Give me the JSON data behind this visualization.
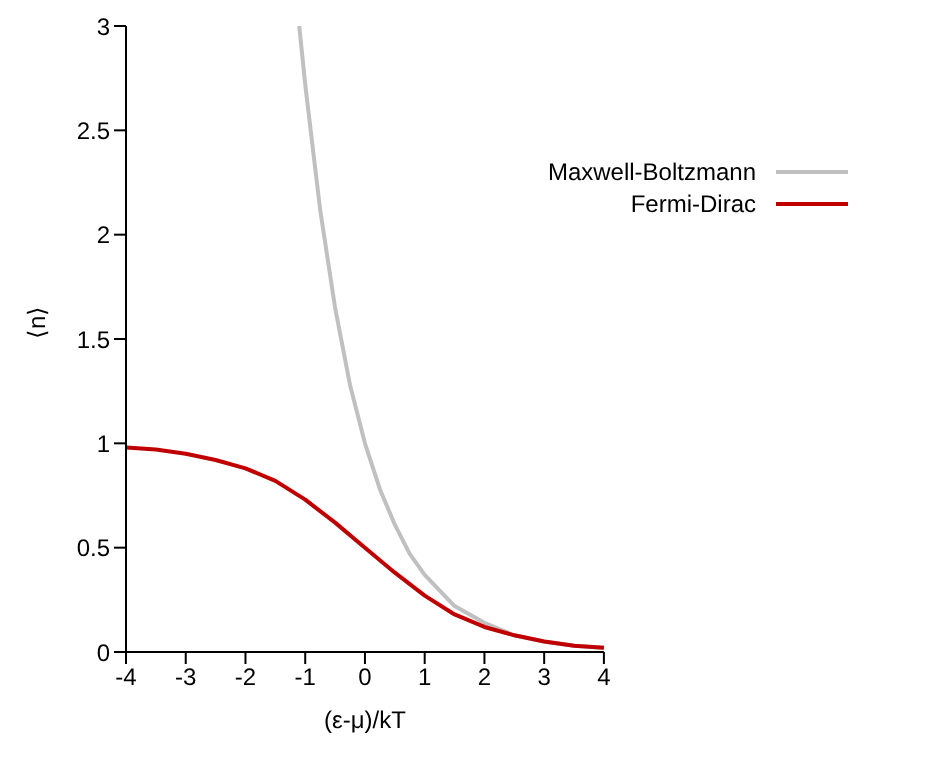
{
  "chart_data": {
    "type": "line",
    "xlabel": "(ε-μ)/kT",
    "ylabel": "⟨n⟩",
    "xlim": [
      -4,
      4
    ],
    "ylim": [
      0,
      3
    ],
    "xticks": [
      -4,
      -3,
      -2,
      -1,
      0,
      1,
      2,
      3,
      4
    ],
    "yticks": [
      0,
      0.5,
      1,
      1.5,
      2,
      2.5,
      3
    ],
    "grid": false,
    "legend": "top right",
    "marker": "none",
    "line_style": "solid",
    "series": [
      {
        "name": "Maxwell-Boltzmann",
        "color": "#c0c0c0",
        "x": [
          -1.1,
          -1,
          -0.75,
          -0.5,
          -0.25,
          0,
          0.25,
          0.5,
          0.75,
          1,
          1.5,
          2,
          2.5,
          3,
          3.5,
          4
        ],
        "values": [
          3.0,
          2.72,
          2.12,
          1.65,
          1.28,
          1.0,
          0.78,
          0.61,
          0.47,
          0.37,
          0.22,
          0.14,
          0.08,
          0.05,
          0.03,
          0.02
        ]
      },
      {
        "name": "Fermi-Dirac",
        "color": "#c00000",
        "x": [
          -4,
          -3.5,
          -3,
          -2.5,
          -2,
          -1.5,
          -1,
          -0.5,
          0,
          0.5,
          1,
          1.5,
          2,
          2.5,
          3,
          3.5,
          4
        ],
        "values": [
          0.98,
          0.97,
          0.95,
          0.92,
          0.88,
          0.82,
          0.73,
          0.62,
          0.5,
          0.38,
          0.27,
          0.18,
          0.12,
          0.08,
          0.05,
          0.03,
          0.02
        ]
      }
    ]
  }
}
